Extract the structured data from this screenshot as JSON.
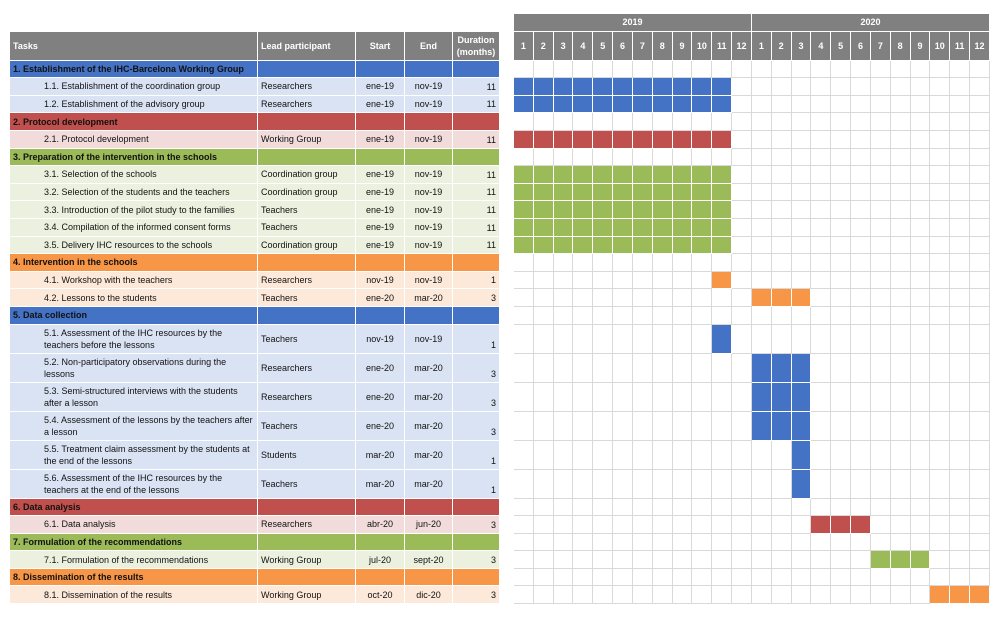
{
  "header": {
    "columns": [
      "Tasks",
      "Lead participant",
      "Start",
      "End",
      "Duration (months)"
    ]
  },
  "timeline": {
    "years": [
      "2019",
      "2020"
    ],
    "months": [
      "1",
      "2",
      "3",
      "4",
      "5",
      "6",
      "7",
      "8",
      "9",
      "10",
      "11",
      "12"
    ]
  },
  "sections": [
    {
      "title": "1. Establishment of the IHC-Barcelona Working Group",
      "color": "#4472c4",
      "task_color": "#dae3f3",
      "tasks": [
        {
          "name": "1.1. Establishment of the coordination group",
          "lead": "Researchers",
          "start": "ene-19",
          "end": "nov-19",
          "duration": 11
        },
        {
          "name": "1.2. Establishment of the advisory group",
          "lead": "Researchers",
          "start": "ene-19",
          "end": "nov-19",
          "duration": 11
        }
      ]
    },
    {
      "title": "2. Protocol development",
      "color": "#c0504d",
      "task_color": "#f2dcdb",
      "tasks": [
        {
          "name": "2.1. Protocol development",
          "lead": "Working Group",
          "start": "ene-19",
          "end": "nov-19",
          "duration": 11
        }
      ]
    },
    {
      "title": "3. Preparation of the intervention in the schools",
      "color": "#9bbb59",
      "task_color": "#ebf1de",
      "tasks": [
        {
          "name": "3.1. Selection of the schools",
          "lead": "Coordination group",
          "start": "ene-19",
          "end": "nov-19",
          "duration": 11
        },
        {
          "name": "3.2. Selection of the students and the teachers",
          "lead": "Coordination group",
          "start": "ene-19",
          "end": "nov-19",
          "duration": 11
        },
        {
          "name": "3.3. Introduction of the pilot study to the families",
          "lead": "Teachers",
          "start": "ene-19",
          "end": "nov-19",
          "duration": 11
        },
        {
          "name": "3.4. Compilation of the informed consent forms",
          "lead": "Teachers",
          "start": "ene-19",
          "end": "nov-19",
          "duration": 11
        },
        {
          "name": "3.5. Delivery IHC resources to the schools",
          "lead": "Coordination group",
          "start": "ene-19",
          "end": "nov-19",
          "duration": 11
        }
      ]
    },
    {
      "title": "4. Intervention in the schools",
      "color": "#f79646",
      "task_color": "#fde9d9",
      "tasks": [
        {
          "name": "4.1. Workshop with the teachers",
          "lead": "Researchers",
          "start": "nov-19",
          "end": "nov-19",
          "duration": 1
        },
        {
          "name": "4.2. Lessons to the students",
          "lead": "Teachers",
          "start": "ene-20",
          "end": "mar-20",
          "duration": 3
        }
      ]
    },
    {
      "title": "5. Data collection",
      "color": "#4472c4",
      "task_color": "#dae3f3",
      "tasks": [
        {
          "name": "5.1. Assessment of the IHC resources by the teachers before the lessons",
          "lead": "Teachers",
          "start": "nov-19",
          "end": "nov-19",
          "duration": 1
        },
        {
          "name": "5.2. Non-participatory observations during the lessons",
          "lead": "Researchers",
          "start": "ene-20",
          "end": "mar-20",
          "duration": 3
        },
        {
          "name": "5.3. Semi-structured interviews with the students after a lesson",
          "lead": "Researchers",
          "start": "ene-20",
          "end": "mar-20",
          "duration": 3
        },
        {
          "name": "5.4. Assessment of the lessons by the teachers after a lesson",
          "lead": "Teachers",
          "start": "ene-20",
          "end": "mar-20",
          "duration": 3
        },
        {
          "name": "5.5. Treatment claim assessment by the students at the end of the lessons",
          "lead": "Students",
          "start": "mar-20",
          "end": "mar-20",
          "duration": 1
        },
        {
          "name": "5.6. Assessment of the IHC resources by the teachers at the end of the lessons",
          "lead": "Teachers",
          "start": "mar-20",
          "end": "mar-20",
          "duration": 1
        }
      ]
    },
    {
      "title": "6. Data analysis",
      "color": "#c0504d",
      "task_color": "#f2dcdb",
      "tasks": [
        {
          "name": "6.1. Data analysis",
          "lead": "Researchers",
          "start": "abr-20",
          "end": "jun-20",
          "duration": 3
        }
      ]
    },
    {
      "title": "7. Formulation of the recommendations",
      "color": "#9bbb59",
      "task_color": "#ebf1de",
      "tasks": [
        {
          "name": "7.1. Formulation of the recommendations",
          "lead": "Working Group",
          "start": "jul-20",
          "end": "sept-20",
          "duration": 3
        }
      ]
    },
    {
      "title": "8. Dissemination of the results",
      "color": "#f79646",
      "task_color": "#fde9d9",
      "tasks": [
        {
          "name": "8.1. Dissemination of the results",
          "lead": "Working Group",
          "start": "oct-20",
          "end": "dic-20",
          "duration": 3
        }
      ]
    }
  ]
}
